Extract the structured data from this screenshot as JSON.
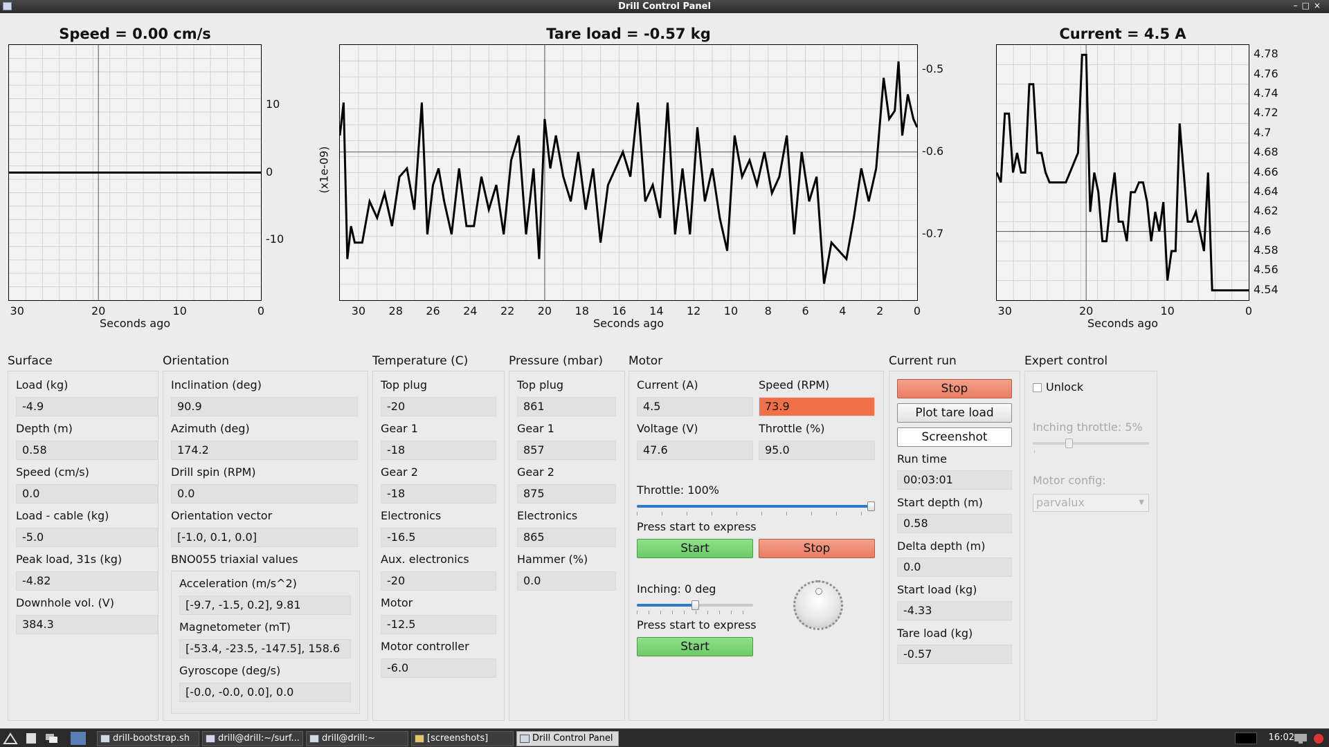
{
  "window": {
    "title": "Drill Control Panel",
    "controls": "–□×"
  },
  "charts": {
    "speed": {
      "title": "Speed = 0.00 cm/s",
      "xlabel": "Seconds ago",
      "yticks": [
        "10",
        "0",
        "-10"
      ],
      "xticks": [
        "30",
        "20",
        "10",
        "0"
      ]
    },
    "tare": {
      "title": "Tare load = -0.57 kg",
      "xlabel": "Seconds ago",
      "ylabel": "(x1e-09)",
      "yticks": [
        "-0.5",
        "-0.6",
        "-0.7"
      ],
      "xticks": [
        "30",
        "28",
        "26",
        "24",
        "22",
        "20",
        "18",
        "16",
        "14",
        "12",
        "10",
        "8",
        "6",
        "4",
        "2",
        "0"
      ]
    },
    "current": {
      "title": "Current = 4.5 A",
      "xlabel": "Seconds ago",
      "yticks": [
        "4.78",
        "4.76",
        "4.74",
        "4.72",
        "4.7",
        "4.68",
        "4.66",
        "4.64",
        "4.62",
        "4.6",
        "4.58",
        "4.56",
        "4.54"
      ],
      "xticks": [
        "30",
        "20",
        "10",
        "0"
      ]
    }
  },
  "chart_data": [
    {
      "type": "line",
      "title": "Speed = 0.00 cm/s",
      "xlabel": "Seconds ago",
      "ylabel": "",
      "xlim": [
        31,
        0
      ],
      "ylim": [
        -19,
        19
      ],
      "series": [
        {
          "x": [
            31,
            0
          ],
          "y": [
            0,
            0
          ]
        }
      ]
    },
    {
      "type": "line",
      "title": "Tare load = -0.57 kg",
      "xlabel": "Seconds ago",
      "ylabel": "(x1e-09)",
      "xlim": [
        31,
        0
      ],
      "ylim": [
        -0.78,
        -0.47
      ],
      "series": [
        {
          "x": [
            31,
            30.8,
            30.6,
            30.4,
            30.2,
            29.8,
            29.4,
            29,
            28.6,
            28.2,
            27.8,
            27.4,
            27,
            26.6,
            26.3,
            26,
            25.7,
            25.4,
            25,
            24.6,
            24.2,
            23.8,
            23.4,
            23,
            22.6,
            22.2,
            21.8,
            21.4,
            21,
            20.6,
            20.3,
            20,
            19.7,
            19.4,
            19,
            18.6,
            18.2,
            17.8,
            17.4,
            17,
            16.6,
            16.2,
            15.8,
            15.4,
            15,
            14.6,
            14.2,
            13.8,
            13.4,
            13,
            12.6,
            12.2,
            11.8,
            11.4,
            11,
            10.6,
            10.2,
            9.8,
            9.4,
            9,
            8.6,
            8.2,
            7.8,
            7.4,
            7,
            6.6,
            6.2,
            5.8,
            5.4,
            5,
            4.6,
            4.2,
            3.8,
            3.4,
            3,
            2.6,
            2.2,
            1.8,
            1.5,
            1.2,
            1,
            0.8,
            0.5,
            0.2,
            0
          ],
          "y": [
            -0.58,
            -0.54,
            -0.73,
            -0.69,
            -0.71,
            -0.71,
            -0.66,
            -0.68,
            -0.65,
            -0.69,
            -0.63,
            -0.62,
            -0.67,
            -0.54,
            -0.7,
            -0.64,
            -0.62,
            -0.66,
            -0.7,
            -0.62,
            -0.69,
            -0.69,
            -0.63,
            -0.67,
            -0.64,
            -0.7,
            -0.61,
            -0.58,
            -0.7,
            -0.62,
            -0.73,
            -0.56,
            -0.62,
            -0.58,
            -0.63,
            -0.66,
            -0.6,
            -0.67,
            -0.62,
            -0.71,
            -0.64,
            -0.62,
            -0.6,
            -0.63,
            -0.54,
            -0.66,
            -0.64,
            -0.68,
            -0.54,
            -0.7,
            -0.62,
            -0.7,
            -0.57,
            -0.66,
            -0.62,
            -0.68,
            -0.72,
            -0.58,
            -0.63,
            -0.61,
            -0.64,
            -0.6,
            -0.65,
            -0.63,
            -0.58,
            -0.7,
            -0.6,
            -0.66,
            -0.63,
            -0.76,
            -0.71,
            -0.72,
            -0.73,
            -0.68,
            -0.62,
            -0.66,
            -0.62,
            -0.51,
            -0.56,
            -0.55,
            -0.49,
            -0.58,
            -0.53,
            -0.56,
            -0.57
          ]
        }
      ]
    },
    {
      "type": "line",
      "title": "Current = 4.5 A",
      "xlabel": "Seconds ago",
      "ylabel": "",
      "xlim": [
        31,
        0
      ],
      "ylim": [
        4.53,
        4.79
      ],
      "series": [
        {
          "x": [
            31,
            30.5,
            30,
            29.5,
            29,
            28.5,
            28,
            27.5,
            27,
            26.5,
            26,
            25.5,
            25,
            24.5,
            24,
            23.5,
            23,
            22.5,
            22,
            21.5,
            21,
            20.5,
            20,
            19.5,
            19,
            18.5,
            18,
            17.5,
            17,
            16.5,
            16,
            15.5,
            15,
            14.5,
            14,
            13.5,
            13,
            12.5,
            12,
            11.5,
            11,
            10.5,
            10,
            9.5,
            9,
            8.5,
            8,
            7.5,
            7,
            6.5,
            6,
            5.5,
            5,
            4.5,
            4,
            3.5,
            3,
            2.5,
            2,
            1.5,
            1,
            0.5,
            0
          ],
          "y": [
            4.66,
            4.65,
            4.72,
            4.72,
            4.66,
            4.68,
            4.66,
            4.66,
            4.75,
            4.75,
            4.68,
            4.68,
            4.66,
            4.65,
            4.65,
            4.65,
            4.65,
            4.65,
            4.66,
            4.67,
            4.68,
            4.78,
            4.78,
            4.62,
            4.66,
            4.64,
            4.59,
            4.59,
            4.63,
            4.66,
            4.61,
            4.61,
            4.59,
            4.64,
            4.64,
            4.65,
            4.65,
            4.63,
            4.59,
            4.62,
            4.6,
            4.63,
            4.55,
            4.58,
            4.58,
            4.71,
            4.66,
            4.61,
            4.61,
            4.62,
            4.6,
            4.58,
            4.66,
            4.54,
            4.54,
            4.54,
            4.54,
            4.54,
            4.54,
            4.54,
            4.54,
            4.54,
            4.54
          ]
        }
      ]
    }
  ],
  "surface": {
    "title": "Surface",
    "fields": [
      {
        "label": "Load (kg)",
        "value": "-4.9"
      },
      {
        "label": "Depth (m)",
        "value": "0.58"
      },
      {
        "label": "Speed (cm/s)",
        "value": "0.0"
      },
      {
        "label": "Load - cable (kg)",
        "value": "-5.0"
      },
      {
        "label": "Peak load, 31s (kg)",
        "value": "-4.82"
      },
      {
        "label": "Downhole vol. (V)",
        "value": "384.3"
      }
    ]
  },
  "orientation": {
    "title": "Orientation",
    "fields": [
      {
        "label": "Inclination (deg)",
        "value": "90.9"
      },
      {
        "label": "Azimuth (deg)",
        "value": "174.2"
      },
      {
        "label": "Drill spin (RPM)",
        "value": "0.0"
      },
      {
        "label": "Orientation vector",
        "value": "[-1.0, 0.1, 0.0]"
      }
    ],
    "bno_title": "BNO055 triaxial values",
    "bno": [
      {
        "label": "Acceleration (m/s^2)",
        "value": "[-9.7, -1.5, 0.2], 9.81"
      },
      {
        "label": "Magnetometer (mT)",
        "value": "[-53.4, -23.5, -147.5], 158.6"
      },
      {
        "label": "Gyroscope (deg/s)",
        "value": "[-0.0, -0.0, 0.0], 0.0"
      }
    ]
  },
  "temperature": {
    "title": "Temperature (C)",
    "fields": [
      {
        "label": "Top plug",
        "value": "-20"
      },
      {
        "label": "Gear 1",
        "value": "-18"
      },
      {
        "label": "Gear 2",
        "value": "-18"
      },
      {
        "label": "Electronics",
        "value": "-16.5"
      },
      {
        "label": "Aux. electronics",
        "value": "-20"
      },
      {
        "label": "Motor",
        "value": "-12.5"
      },
      {
        "label": "Motor controller",
        "value": "-6.0"
      }
    ]
  },
  "pressure": {
    "title": "Pressure (mbar)",
    "fields": [
      {
        "label": "Top plug",
        "value": "861"
      },
      {
        "label": "Gear 1",
        "value": "857"
      },
      {
        "label": "Gear 2",
        "value": "875"
      },
      {
        "label": "Electronics",
        "value": "865"
      },
      {
        "label": "Hammer (%)",
        "value": "0.0"
      }
    ]
  },
  "motor": {
    "title": "Motor",
    "current_label": "Current (A)",
    "current_value": "4.5",
    "speed_label": "Speed (RPM)",
    "speed_value": "73.9",
    "speed_highlight": "#f07048",
    "voltage_label": "Voltage (V)",
    "voltage_value": "47.6",
    "throttle_label": "Throttle (%)",
    "throttle_value": "95.0",
    "throttle_slider_label": "Throttle: 100%",
    "throttle_level": 1.0,
    "press_start_1": "Press start to express",
    "start_label": "Start",
    "stop_label": "Stop",
    "inching_label": "Inching: 0 deg",
    "inching_level": 0.5,
    "press_start_2": "Press start to express",
    "start2_label": "Start"
  },
  "current_run": {
    "title": "Current run",
    "stop_label": "Stop",
    "plot_tare_label": "Plot tare load",
    "screenshot_label": "Screenshot",
    "fields": [
      {
        "label": "Run time",
        "value": "00:03:01"
      },
      {
        "label": "Start depth (m)",
        "value": "0.58"
      },
      {
        "label": "Delta depth (m)",
        "value": "0.0"
      },
      {
        "label": "Start load (kg)",
        "value": "-4.33"
      },
      {
        "label": "Tare load (kg)",
        "value": "-0.57"
      }
    ]
  },
  "expert": {
    "title": "Expert control",
    "unlock_label": "Unlock",
    "inching_throttle_label": "Inching throttle: 5%",
    "inching_throttle_level": 0.3,
    "motor_config_label": "Motor config:",
    "motor_config_value": "parvalux"
  },
  "taskbar": {
    "tasks": [
      "drill-bootstrap.sh",
      "drill@drill:~/surf...",
      "drill@drill:~",
      "[screenshots]",
      "Drill Control Panel"
    ],
    "clock": "16:02"
  }
}
